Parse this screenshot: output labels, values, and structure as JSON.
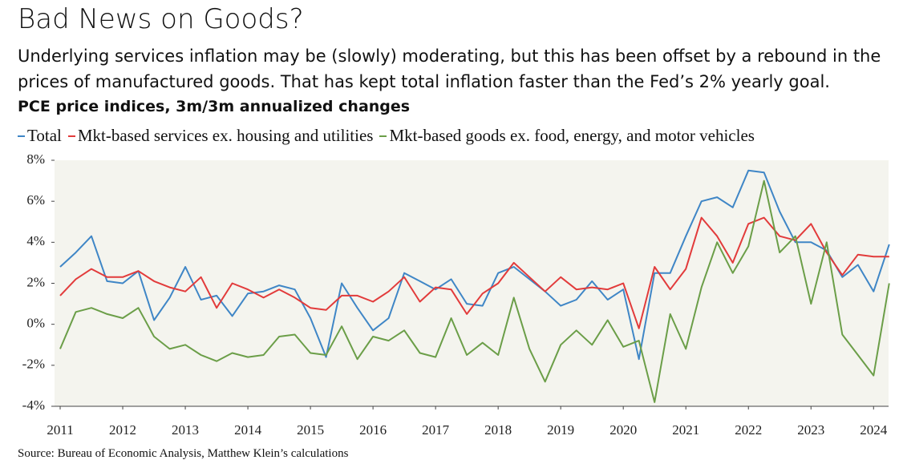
{
  "chart_data": {
    "type": "line",
    "title": "Bad News on Goods?",
    "subtitle": "Underlying services inflation may be (slowly) moderating, but this has been offset by a rebound in the prices of manufactured goods. That has kept total inflation faster than the Fed’s 2% yearly goal.",
    "chart_title": "PCE price indices, 3m/3m annualized changes",
    "source": "Source: Bureau of Economic Analysis, Matthew Klein’s calculations",
    "x": [
      2011,
      2011.25,
      2011.5,
      2011.75,
      2012,
      2012.25,
      2012.5,
      2012.75,
      2013,
      2013.25,
      2013.5,
      2013.75,
      2014,
      2014.25,
      2014.5,
      2014.75,
      2015,
      2015.25,
      2015.5,
      2015.75,
      2016,
      2016.25,
      2016.5,
      2016.75,
      2017,
      2017.25,
      2017.5,
      2017.75,
      2018,
      2018.25,
      2018.5,
      2018.75,
      2019,
      2019.25,
      2019.5,
      2019.75,
      2020,
      2020.25,
      2020.5,
      2020.75,
      2021,
      2021.25,
      2021.5,
      2021.75,
      2022,
      2022.25,
      2022.5,
      2022.75,
      2023,
      2023.25,
      2023.5,
      2023.75,
      2024,
      2024.25
    ],
    "series": [
      {
        "name": "Total",
        "color": "#3f86c6",
        "values": [
          2.8,
          3.5,
          4.3,
          2.1,
          2.0,
          2.6,
          0.2,
          1.3,
          2.8,
          1.2,
          1.4,
          0.4,
          1.5,
          1.6,
          1.9,
          1.7,
          0.3,
          -1.6,
          2.0,
          0.8,
          -0.3,
          0.3,
          2.5,
          2.1,
          1.7,
          2.2,
          1.0,
          0.9,
          2.5,
          2.8,
          2.2,
          1.6,
          0.9,
          1.2,
          2.1,
          1.2,
          1.7,
          -1.7,
          2.5,
          2.5,
          4.3,
          6.0,
          6.2,
          5.7,
          7.5,
          7.4,
          5.5,
          4.0,
          4.0,
          3.6,
          2.3,
          2.9,
          1.6,
          3.9
        ]
      },
      {
        "name": "Mkt-based services ex. housing and utilities",
        "color": "#e23b3b",
        "values": [
          1.4,
          2.2,
          2.7,
          2.3,
          2.3,
          2.6,
          2.1,
          1.8,
          1.6,
          2.3,
          0.8,
          2.0,
          1.7,
          1.3,
          1.7,
          1.3,
          0.8,
          0.7,
          1.4,
          1.4,
          1.1,
          1.6,
          2.3,
          1.1,
          1.8,
          1.7,
          0.5,
          1.5,
          2.0,
          3.0,
          2.3,
          1.6,
          2.3,
          1.7,
          1.8,
          1.7,
          2.0,
          -0.2,
          2.8,
          1.7,
          2.7,
          5.2,
          4.3,
          3.0,
          4.9,
          5.2,
          4.3,
          4.1,
          4.9,
          3.5,
          2.4,
          3.4,
          3.3,
          3.3
        ]
      },
      {
        "name": "Mkt-based goods ex. food, energy, and motor vehicles",
        "color": "#6b9e48",
        "values": [
          -1.2,
          0.6,
          0.8,
          0.5,
          0.3,
          0.8,
          -0.6,
          -1.2,
          -1.0,
          -1.5,
          -1.8,
          -1.4,
          -1.6,
          -1.5,
          -0.6,
          -0.5,
          -1.4,
          -1.5,
          -0.1,
          -1.7,
          -0.6,
          -0.8,
          -0.3,
          -1.4,
          -1.6,
          0.3,
          -1.5,
          -0.9,
          -1.5,
          1.3,
          -1.2,
          -2.8,
          -1.0,
          -0.3,
          -1.0,
          0.2,
          -1.1,
          -0.8,
          -3.8,
          0.5,
          -1.2,
          1.8,
          4.0,
          2.5,
          3.8,
          7.0,
          3.5,
          4.3,
          1.0,
          4.0,
          -0.5,
          -1.5,
          -2.5,
          2.0
        ]
      }
    ],
    "xlim": [
      2010.91,
      2024.24
    ],
    "xticks": [
      2011,
      2012,
      2013,
      2014,
      2015,
      2016,
      2017,
      2018,
      2019,
      2020,
      2021,
      2022,
      2023,
      2024
    ],
    "ylim": [
      -4,
      8
    ],
    "yticks": [
      {
        "value": -4,
        "label": "-4%"
      },
      {
        "value": -2,
        "label": "-2%"
      },
      {
        "value": 0,
        "label": "0%"
      },
      {
        "value": 2,
        "label": "2%"
      },
      {
        "value": 4,
        "label": "4%"
      },
      {
        "value": 6,
        "label": "6%"
      },
      {
        "value": 8,
        "label": "8%"
      }
    ]
  }
}
